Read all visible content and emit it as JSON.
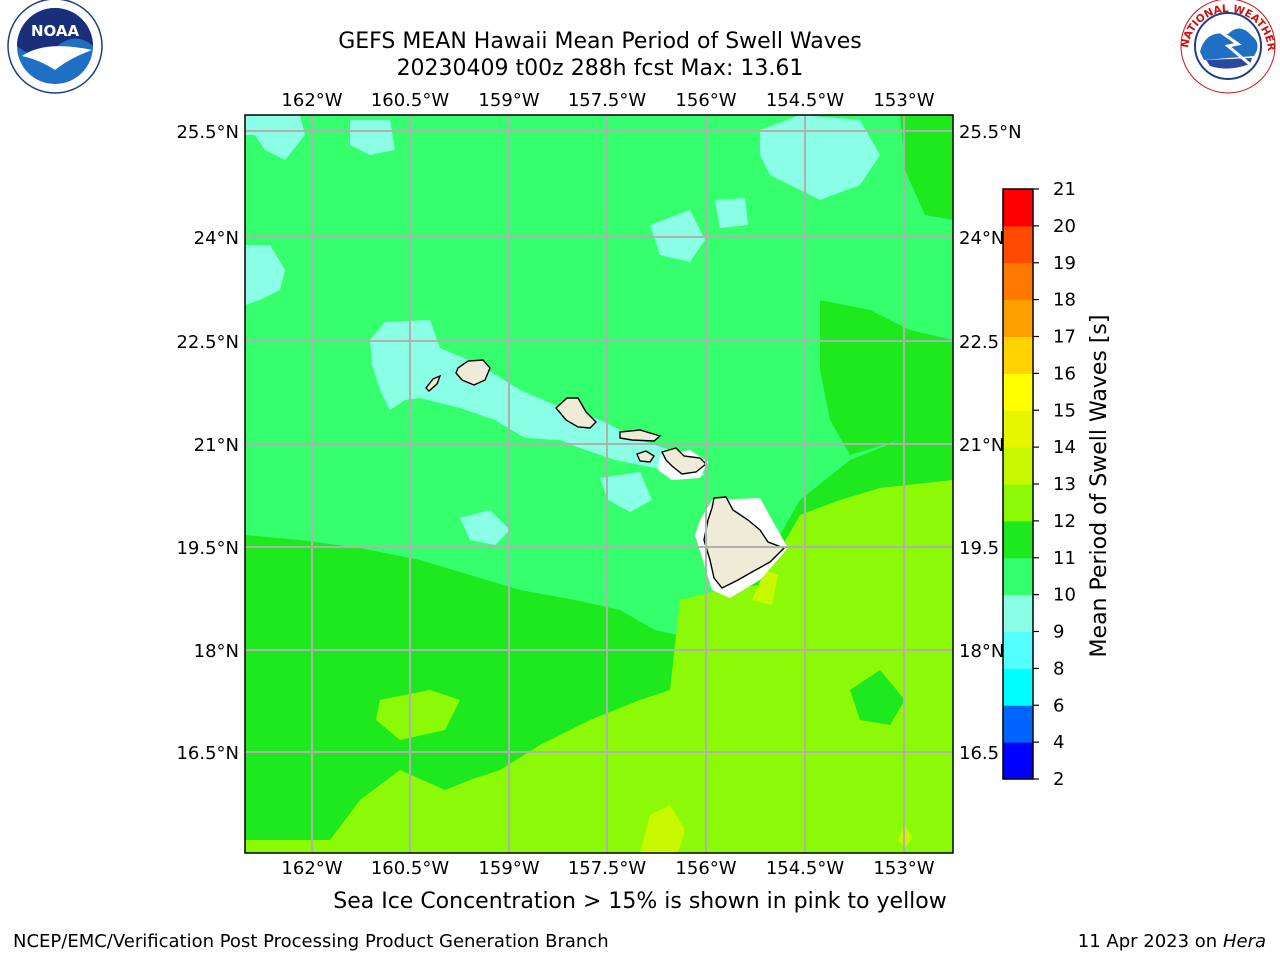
{
  "header": {
    "title_line1": "GEFS MEAN Hawaii Mean Period of Swell Waves",
    "title_line2": "20230409 t00z 288h fcst   Max: 13.61"
  },
  "logos": {
    "left": {
      "text": "NOAA",
      "ring_text": "NATIONAL OCEANIC AND ATMOSPHERIC ADMINISTRATION · U.S. DEPARTMENT OF COMMERCE"
    },
    "right": {
      "ring_text": "NATIONAL WEATHER SERVICE"
    }
  },
  "map": {
    "lon_labels": [
      "162°W",
      "160.5°W",
      "159°W",
      "157.5°W",
      "156°W",
      "154.5°W",
      "153°W"
    ],
    "lat_labels": [
      "25.5°N",
      "24°N",
      "22.5°N",
      "21°N",
      "19.5°N",
      "18°N",
      "16.5°N"
    ],
    "lat_labels_right": [
      "25.5°N",
      "24°N",
      "22.5",
      "21°N",
      "19.5",
      "18°N",
      "16.5"
    ],
    "field_colors": {
      "c9_10": "#8affe6",
      "c10_11": "#36ff6e",
      "c11_12": "#1ee81e",
      "c12_13": "#8cfa06",
      "c13_14": "#c8f800",
      "land": "#eeebd9",
      "grid": "#b0b0b0"
    }
  },
  "colorbar": {
    "label": "Mean Period of Swell Waves [s]",
    "ticks": [
      "2",
      "4",
      "6",
      "8",
      "9",
      "10",
      "11",
      "12",
      "13",
      "14",
      "15",
      "16",
      "17",
      "18",
      "19",
      "20",
      "21"
    ],
    "colors": [
      "#0000ff",
      "#0064ff",
      "#00ffff",
      "#55ffff",
      "#8affe6",
      "#36ff6e",
      "#1ee81e",
      "#8cfa06",
      "#c8f800",
      "#e6f500",
      "#ffff00",
      "#ffd200",
      "#ffa000",
      "#ff7800",
      "#ff4a00",
      "#ff0000"
    ]
  },
  "footer": {
    "note": "Sea Ice Concentration > 15% is shown in pink to yellow",
    "left": "NCEP/EMC/Verification Post Processing Product Generation Branch",
    "date": "11 Apr 2023 on ",
    "machine": "Hera"
  }
}
